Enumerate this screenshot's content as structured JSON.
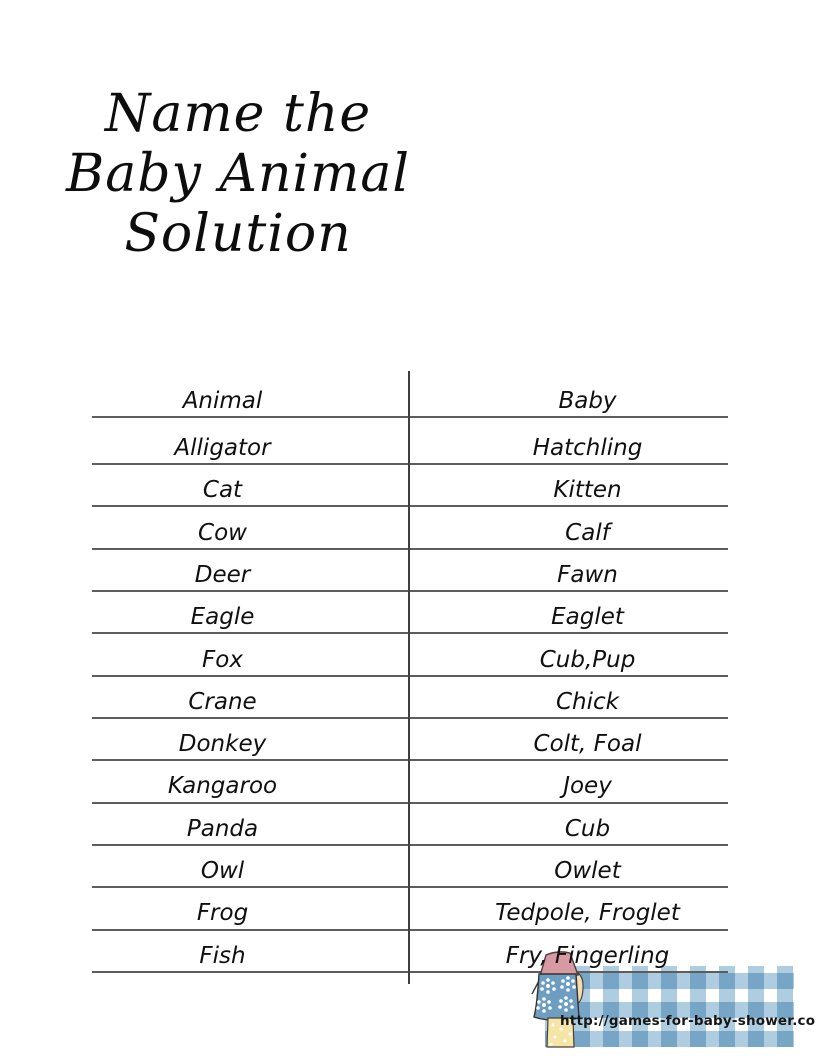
{
  "page": {
    "title_lines": [
      "Name the",
      "Baby Animal",
      "Solution"
    ]
  },
  "table": {
    "headers": {
      "animal": "Animal",
      "baby": "Baby"
    },
    "rows": [
      {
        "animal": "Alligator",
        "baby": "Hatchling"
      },
      {
        "animal": "Cat",
        "baby": "Kitten"
      },
      {
        "animal": "Cow",
        "baby": "Calf"
      },
      {
        "animal": "Deer",
        "baby": "Fawn"
      },
      {
        "animal": "Eagle",
        "baby": "Eaglet"
      },
      {
        "animal": "Fox",
        "baby": "Cub,Pup"
      },
      {
        "animal": "Crane",
        "baby": "Chick"
      },
      {
        "animal": "Donkey",
        "baby": "Colt, Foal"
      },
      {
        "animal": "Kangaroo",
        "baby": "Joey"
      },
      {
        "animal": "Panda",
        "baby": "Cub"
      },
      {
        "animal": "Owl",
        "baby": "Owlet"
      },
      {
        "animal": "Frog",
        "baby": "Tedpole, Froglet"
      },
      {
        "animal": "Fish",
        "baby": "Fry, Fingerling"
      }
    ]
  },
  "footer": {
    "url": "http://games-for-baby-shower.com"
  },
  "decor": {
    "illustration": "girl-in-blue-apron-illustration",
    "colors": {
      "gingham_blue": "#aecde1",
      "dress_blue": "#6d9dc0",
      "top_pink": "#d79aa3",
      "skirt_yellow": "#f5e6a8"
    }
  }
}
